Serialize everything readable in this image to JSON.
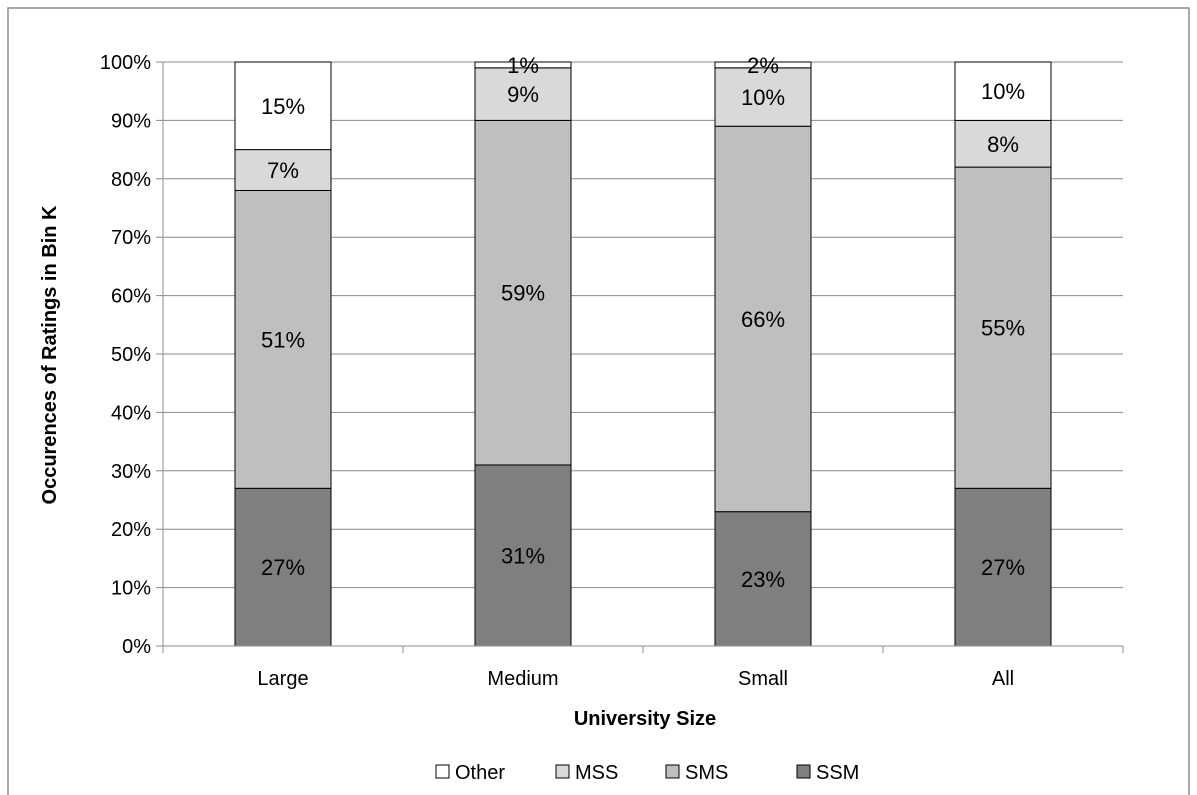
{
  "chart_data": {
    "type": "bar",
    "stacked": true,
    "categories": [
      "Large",
      "Medium",
      "Small",
      "All"
    ],
    "xlabel": "University Size",
    "ylabel": "Occurences of Ratings in Bin K",
    "ylim": [
      0,
      100
    ],
    "y_ticks": [
      "0%",
      "10%",
      "20%",
      "30%",
      "40%",
      "50%",
      "60%",
      "70%",
      "80%",
      "90%",
      "100%"
    ],
    "grid": "horizontal",
    "legend_position": "bottom",
    "series": [
      {
        "name": "SSM",
        "color": "#7f7f7f",
        "values": [
          27,
          31,
          23,
          27
        ],
        "labels": [
          "27%",
          "31%",
          "23%",
          "27%"
        ]
      },
      {
        "name": "SMS",
        "color": "#bfbfbf",
        "values": [
          51,
          59,
          66,
          55
        ],
        "labels": [
          "51%",
          "59%",
          "66%",
          "55%"
        ]
      },
      {
        "name": "MSS",
        "color": "#d9d9d9",
        "values": [
          7,
          9,
          10,
          8
        ],
        "labels": [
          "7%",
          "9%",
          "10%",
          "8%"
        ]
      },
      {
        "name": "Other",
        "color": "#ffffff",
        "values": [
          15,
          1,
          2,
          10
        ],
        "labels": [
          "15%",
          "1%",
          "2%",
          "10%"
        ]
      }
    ],
    "legend_order": [
      "Other",
      "MSS",
      "SMS",
      "SSM"
    ]
  }
}
